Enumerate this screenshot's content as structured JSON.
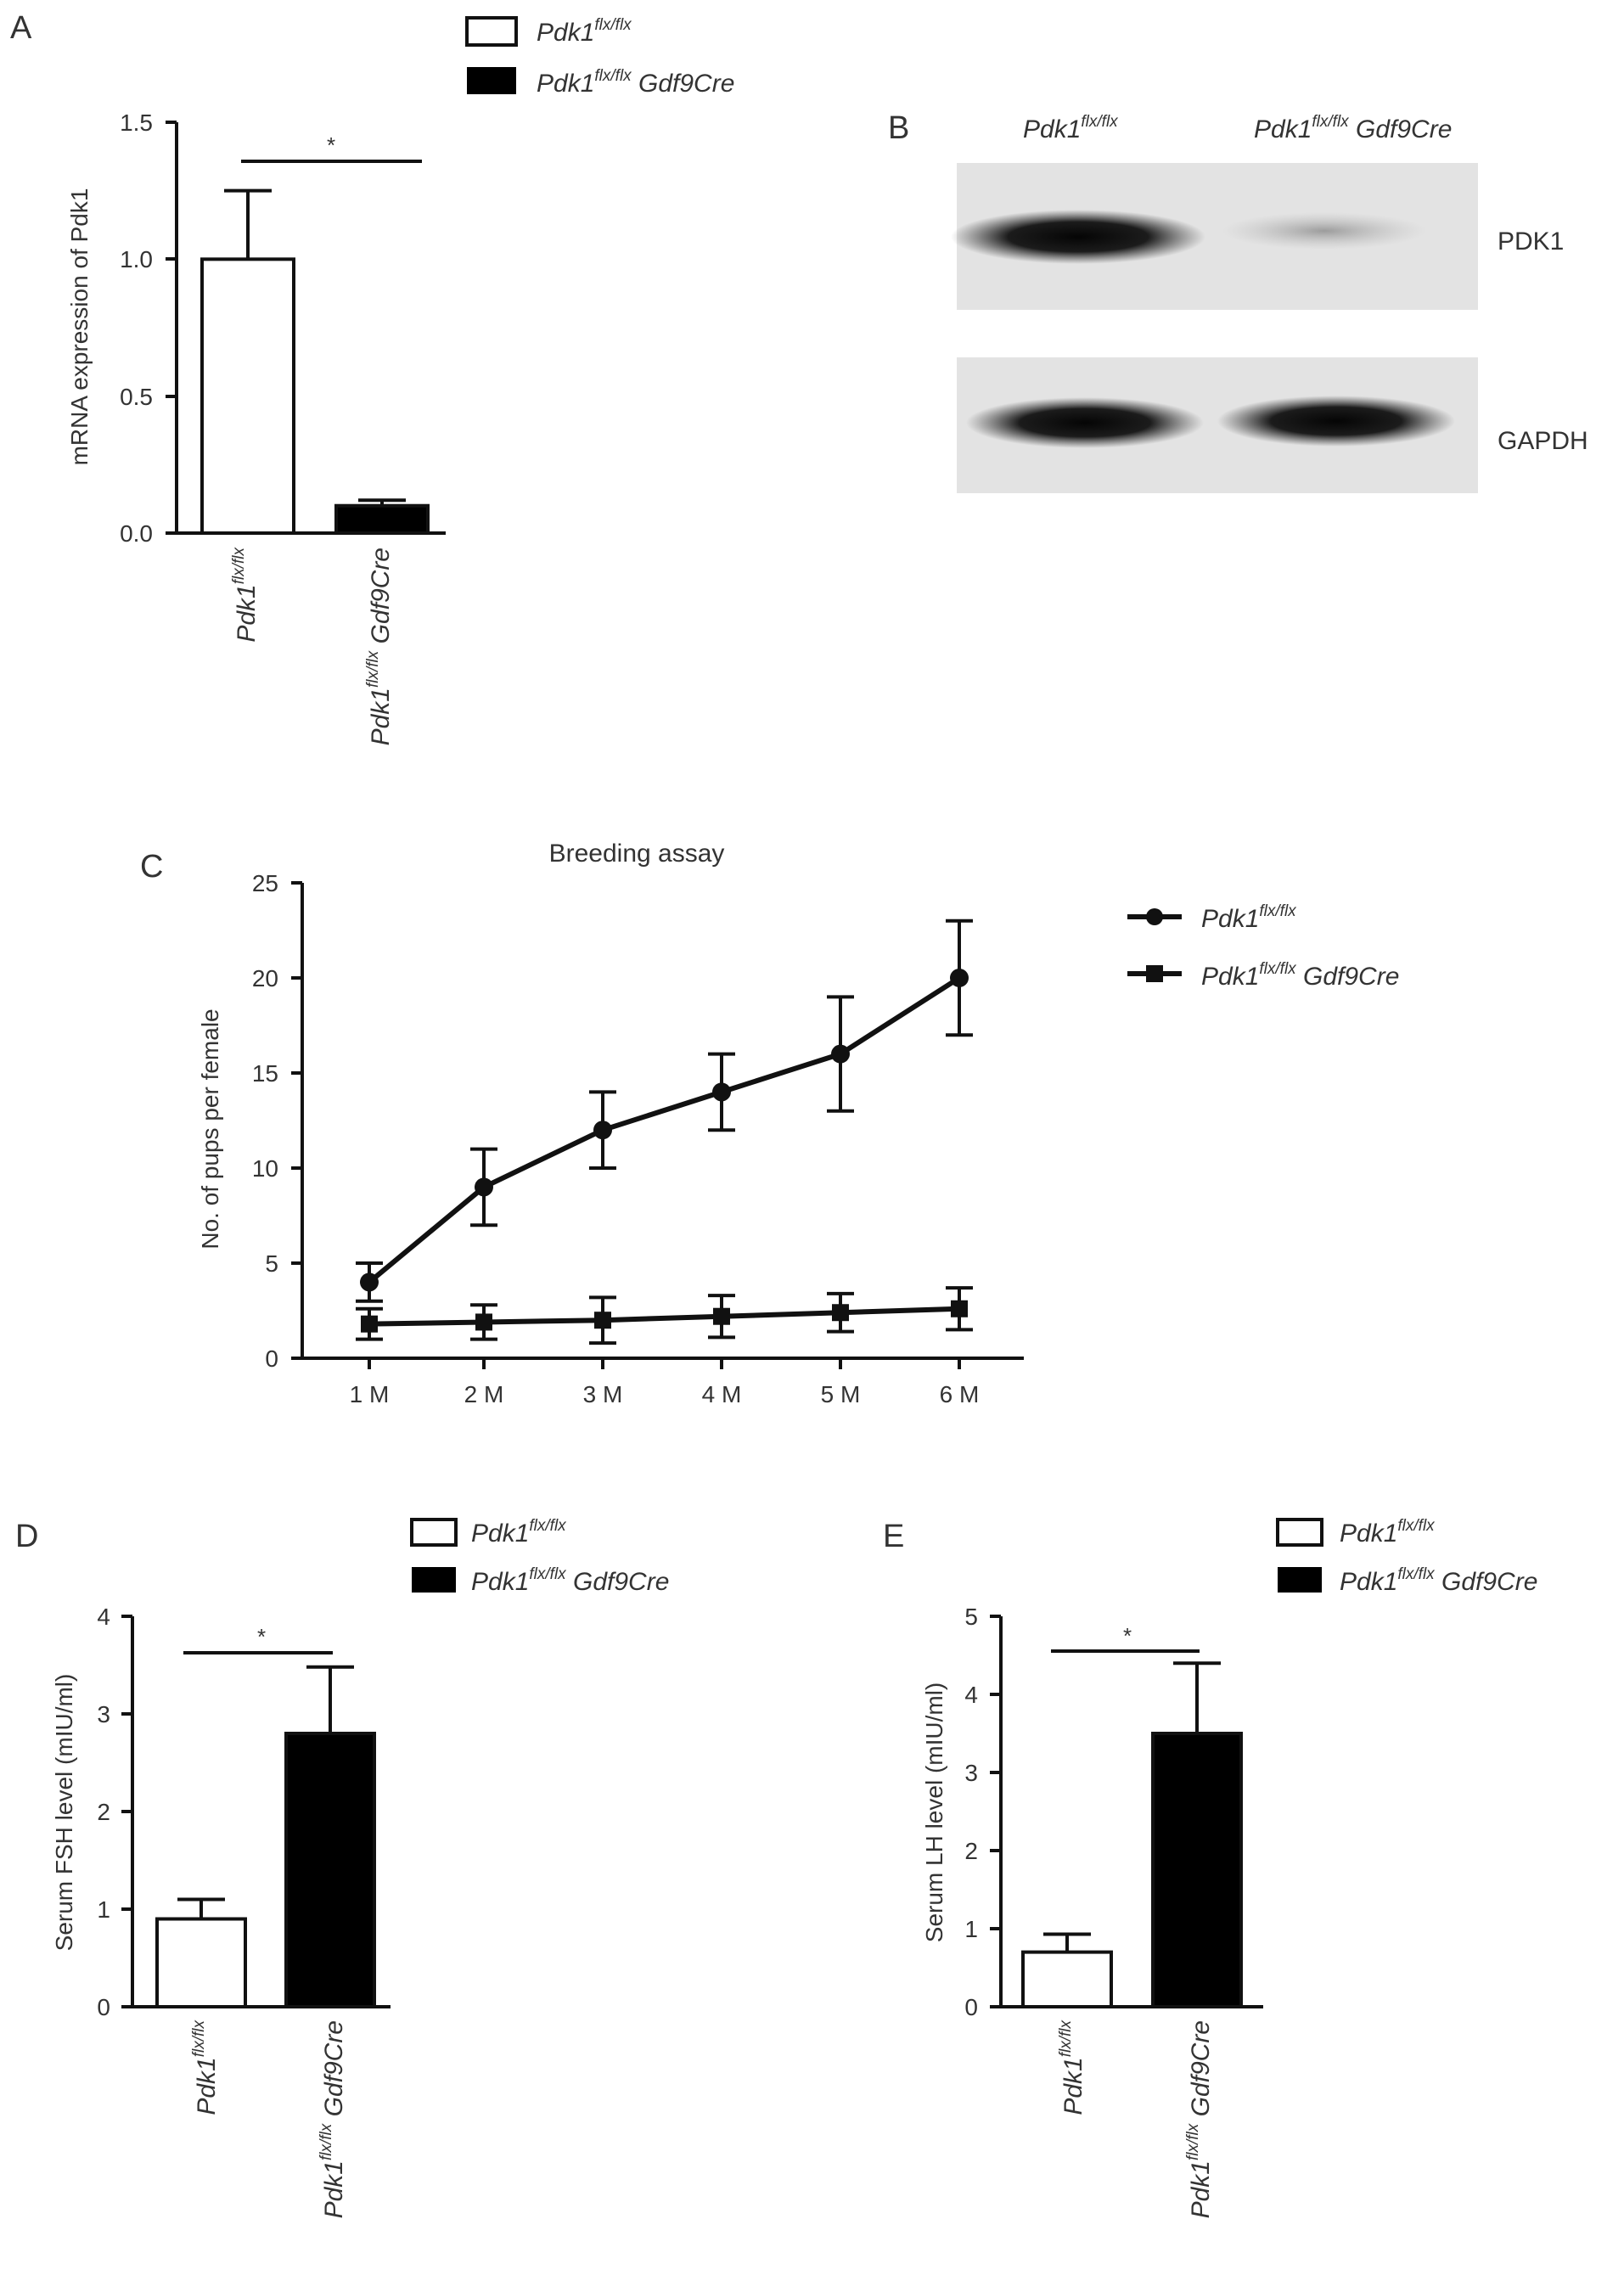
{
  "colors": {
    "ink": "#111111",
    "text": "#333333",
    "blot_bg": "#e3e3e3",
    "background": "#ffffff",
    "bar_white": "#ffffff",
    "bar_black": "#000000"
  },
  "genotypes": {
    "control": {
      "base": "Pdk1",
      "sup": "flx/flx",
      "suffix": ""
    },
    "ko": {
      "base": "Pdk1",
      "sup": "flx/flx",
      "suffix": " Gdf9Cre"
    }
  },
  "panels": {
    "A": {
      "label": "A"
    },
    "B": {
      "label": "B",
      "bands": [
        "PDK1",
        "GAPDH"
      ]
    },
    "C": {
      "label": "C"
    },
    "D": {
      "label": "D"
    },
    "E": {
      "label": "E"
    }
  },
  "chart_data": [
    {
      "panel": "A",
      "type": "bar",
      "categories": [
        "Pdk1flx/flx",
        "Pdk1flx/flx Gdf9Cre"
      ],
      "values": [
        1.0,
        0.1
      ],
      "errors": [
        0.25,
        0.02
      ],
      "ylabel": "mRNA expression of Pdk1",
      "ylim": [
        0,
        1.5
      ],
      "yticks": [
        "0.0",
        "0.5",
        "1.0",
        "1.5"
      ],
      "significance": "*",
      "legend": [
        "Pdk1flx/flx",
        "Pdk1flx/flx Gdf9Cre"
      ],
      "legend_placement": "top-right"
    },
    {
      "panel": "C",
      "type": "line",
      "title": "Breeding assay",
      "x": [
        "1 M",
        "2 M",
        "3 M",
        "4 M",
        "5 M",
        "6 M"
      ],
      "ylabel": "No. of pups per female",
      "ylim": [
        0,
        25
      ],
      "yticks": [
        "0",
        "5",
        "10",
        "15",
        "20",
        "25"
      ],
      "series": [
        {
          "name": "Pdk1flx/flx",
          "marker": "circle",
          "values": [
            4,
            9,
            12,
            14,
            16,
            20
          ],
          "errors": [
            1,
            2,
            2,
            2,
            3,
            3
          ]
        },
        {
          "name": "Pdk1flx/flx Gdf9Cre",
          "marker": "square",
          "values": [
            1.8,
            1.9,
            2.0,
            2.2,
            2.4,
            2.6
          ],
          "errors": [
            0.8,
            0.9,
            1.2,
            1.1,
            1.0,
            1.1
          ]
        }
      ],
      "legend_placement": "right"
    },
    {
      "panel": "D",
      "type": "bar",
      "categories": [
        "Pdk1flx/flx",
        "Pdk1flx/flx Gdf9Cre"
      ],
      "values": [
        0.9,
        2.8
      ],
      "errors": [
        0.2,
        0.68
      ],
      "ylabel": "Serum FSH level (mIU/ml)",
      "ylim": [
        0,
        4
      ],
      "yticks": [
        "0",
        "1",
        "2",
        "3",
        "4"
      ],
      "significance": "*",
      "legend": [
        "Pdk1flx/flx",
        "Pdk1flx/flx Gdf9Cre"
      ],
      "legend_placement": "top-right"
    },
    {
      "panel": "E",
      "type": "bar",
      "categories": [
        "Pdk1flx/flx",
        "Pdk1flx/flx Gdf9Cre"
      ],
      "values": [
        0.7,
        3.5
      ],
      "errors": [
        0.23,
        0.9
      ],
      "ylabel": "Serum LH level (mIU/ml)",
      "ylim": [
        0,
        5
      ],
      "yticks": [
        "0",
        "1",
        "2",
        "3",
        "4",
        "5"
      ],
      "significance": "*",
      "legend": [
        "Pdk1flx/flx",
        "Pdk1flx/flx Gdf9Cre"
      ],
      "legend_placement": "top-right"
    }
  ]
}
